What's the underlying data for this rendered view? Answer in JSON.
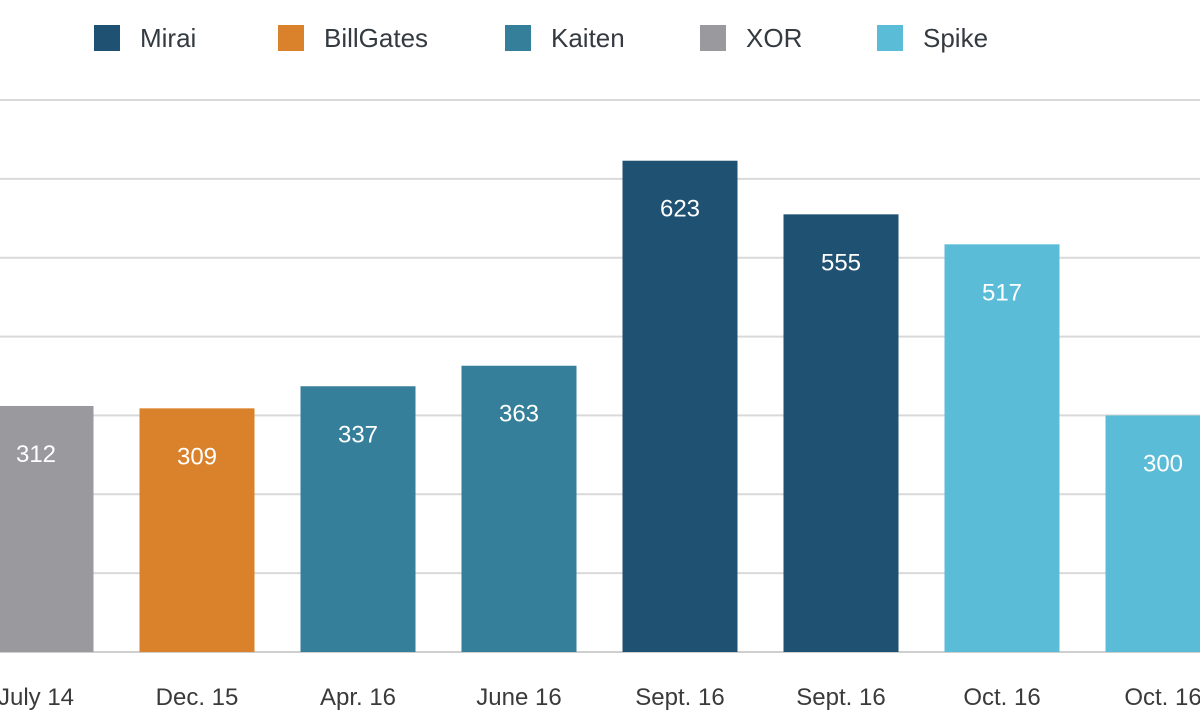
{
  "chart_data": {
    "type": "bar",
    "title": "",
    "xlabel": "",
    "ylabel": "",
    "ylim": [
      0,
      700
    ],
    "grid": true,
    "legend_position": "top",
    "legend": [
      {
        "name": "Mirai",
        "color": "#1f5173"
      },
      {
        "name": "BillGates",
        "color": "#d9822b"
      },
      {
        "name": "Kaiten",
        "color": "#357f9a"
      },
      {
        "name": "XOR",
        "color": "#9a9a9e"
      },
      {
        "name": "Spike",
        "color": "#5bbcd8"
      }
    ],
    "categories": [
      "July 14",
      "Dec. 15",
      "Apr. 16",
      "June 16",
      "Sept. 16",
      "Sept. 16",
      "Oct. 16",
      "Oct. 16"
    ],
    "values": [
      312,
      309,
      337,
      363,
      623,
      555,
      517,
      300
    ],
    "value_labels": [
      "312",
      "309",
      "337",
      "363",
      "623",
      "555",
      "517",
      "300"
    ],
    "bar_series": [
      "XOR",
      "BillGates",
      "Kaiten",
      "Kaiten",
      "Mirai",
      "Mirai",
      "Spike",
      "Spike"
    ]
  }
}
